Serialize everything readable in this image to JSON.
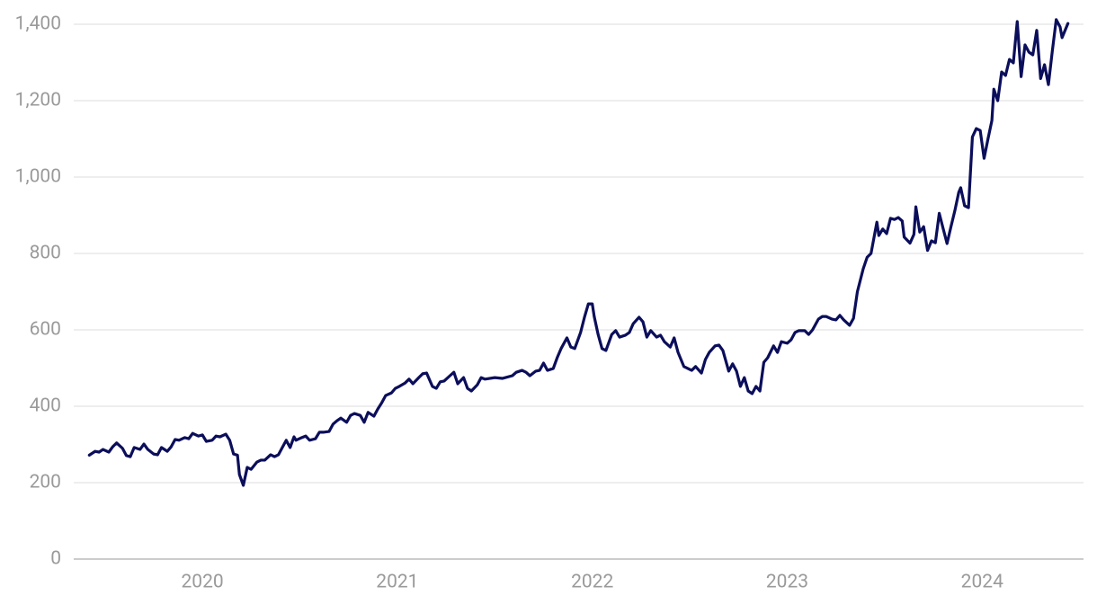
{
  "chart_data": {
    "type": "line",
    "color": "#0b0e5a",
    "grid": true,
    "x": [
      2019.42,
      2019.45,
      2019.47,
      2019.49,
      2019.52,
      2019.54,
      2019.56,
      2019.59,
      2019.61,
      2019.63,
      2019.65,
      2019.68,
      2019.7,
      2019.72,
      2019.75,
      2019.77,
      2019.79,
      2019.82,
      2019.84,
      2019.86,
      2019.88,
      2019.91,
      2019.93,
      2019.95,
      2019.98,
      2020.0,
      2020.02,
      2020.05,
      2020.07,
      2020.09,
      2020.12,
      2020.14,
      2020.16,
      2020.18,
      2020.19,
      2020.21,
      2020.23,
      2020.25,
      2020.28,
      2020.3,
      2020.32,
      2020.35,
      2020.37,
      2020.39,
      2020.41,
      2020.43,
      2020.45,
      2020.47,
      2020.48,
      2020.51,
      2020.53,
      2020.55,
      2020.58,
      2020.6,
      2020.62,
      2020.65,
      2020.67,
      2020.69,
      2020.71,
      2020.74,
      2020.76,
      2020.78,
      2020.81,
      2020.83,
      2020.85,
      2020.88,
      2020.9,
      2020.92,
      2020.94,
      2020.97,
      2020.99,
      2021.01,
      2021.04,
      2021.06,
      2021.08,
      2021.11,
      2021.13,
      2021.15,
      2021.18,
      2021.2,
      2021.22,
      2021.24,
      2021.27,
      2021.29,
      2021.31,
      2021.34,
      2021.36,
      2021.38,
      2021.41,
      2021.43,
      2021.45,
      2021.5,
      2021.54,
      2021.59,
      2021.61,
      2021.64,
      2021.66,
      2021.68,
      2021.71,
      2021.73,
      2021.75,
      2021.77,
      2021.8,
      2021.82,
      2021.84,
      2021.87,
      2021.89,
      2021.91,
      2021.94,
      2021.96,
      2021.98,
      2022.0,
      2022.01,
      2022.03,
      2022.05,
      2022.07,
      2022.1,
      2022.12,
      2022.14,
      2022.17,
      2022.19,
      2022.21,
      2022.24,
      2022.26,
      2022.28,
      2022.3,
      2022.33,
      2022.35,
      2022.37,
      2022.4,
      2022.42,
      2022.44,
      2022.47,
      2022.49,
      2022.51,
      2022.53,
      2022.56,
      2022.58,
      2022.6,
      2022.63,
      2022.65,
      2022.67,
      2022.7,
      2022.72,
      2022.74,
      2022.76,
      2022.78,
      2022.8,
      2022.82,
      2022.84,
      2022.86,
      2022.88,
      2022.9,
      2022.93,
      2022.95,
      2022.97,
      2023.0,
      2023.02,
      2023.04,
      2023.06,
      2023.09,
      2023.11,
      2023.13,
      2023.16,
      2023.18,
      2023.2,
      2023.23,
      2023.25,
      2023.27,
      2023.29,
      2023.32,
      2023.34,
      2023.36,
      2023.39,
      2023.41,
      2023.43,
      2023.46,
      2023.47,
      2023.49,
      2023.51,
      2023.53,
      2023.55,
      2023.57,
      2023.59,
      2023.6,
      2023.63,
      2023.65,
      2023.66,
      2023.68,
      2023.7,
      2023.72,
      2023.74,
      2023.76,
      2023.78,
      2023.8,
      2023.82,
      2023.84,
      2023.86,
      2023.88,
      2023.89,
      2023.91,
      2023.93,
      2023.95,
      2023.97,
      2023.99,
      2024.01,
      2024.03,
      2024.05,
      2024.06,
      2024.08,
      2024.1,
      2024.12,
      2024.14,
      2024.16,
      2024.18,
      2024.2,
      2024.22,
      2024.24,
      2024.26,
      2024.28,
      2024.3,
      2024.32,
      2024.34,
      2024.36,
      2024.38,
      2024.4,
      2024.41,
      2024.44
    ],
    "values": [
      272,
      282,
      280,
      287,
      280,
      294,
      304,
      290,
      271,
      268,
      292,
      287,
      301,
      287,
      275,
      273,
      292,
      282,
      294,
      313,
      311,
      318,
      315,
      329,
      322,
      325,
      308,
      311,
      322,
      320,
      327,
      311,
      275,
      272,
      221,
      193,
      240,
      235,
      254,
      259,
      259,
      273,
      268,
      273,
      292,
      311,
      292,
      320,
      311,
      318,
      322,
      311,
      315,
      332,
      332,
      334,
      353,
      362,
      369,
      358,
      376,
      381,
      376,
      358,
      384,
      374,
      393,
      409,
      428,
      435,
      447,
      452,
      461,
      471,
      459,
      475,
      485,
      487,
      452,
      447,
      464,
      466,
      480,
      489,
      459,
      475,
      447,
      440,
      456,
      475,
      471,
      475,
      473,
      480,
      489,
      494,
      489,
      480,
      492,
      494,
      513,
      494,
      499,
      527,
      551,
      579,
      555,
      551,
      593,
      633,
      668,
      668,
      635,
      588,
      551,
      546,
      588,
      598,
      581,
      586,
      593,
      616,
      633,
      621,
      581,
      598,
      581,
      586,
      569,
      555,
      579,
      541,
      504,
      499,
      494,
      504,
      487,
      522,
      541,
      558,
      560,
      546,
      492,
      511,
      492,
      452,
      475,
      440,
      433,
      452,
      440,
      515,
      527,
      558,
      541,
      569,
      565,
      574,
      593,
      598,
      598,
      588,
      600,
      628,
      635,
      635,
      628,
      626,
      638,
      626,
      612,
      630,
      700,
      760,
      790,
      800,
      882,
      847,
      864,
      852,
      892,
      889,
      894,
      885,
      843,
      827,
      850,
      922,
      856,
      870,
      808,
      833,
      828,
      905,
      865,
      826,
      870,
      912,
      960,
      972,
      925,
      920,
      1105,
      1127,
      1122,
      1049,
      1100,
      1148,
      1230,
      1200,
      1275,
      1266,
      1308,
      1299,
      1407,
      1263,
      1346,
      1327,
      1320,
      1384,
      1258,
      1294,
      1242,
      1330,
      1412,
      1393,
      1365,
      1402
    ],
    "xlim": [
      2019.34,
      2024.52
    ],
    "xticks": [
      2020,
      2021,
      2022,
      2023,
      2024
    ],
    "ylim": [
      0,
      1400
    ],
    "yticks": [
      0,
      200,
      400,
      600,
      800,
      {
        "value": 1000,
        "label": "1,000"
      },
      {
        "value": 1200,
        "label": "1,200"
      },
      {
        "value": 1400,
        "label": "1,400"
      }
    ]
  }
}
